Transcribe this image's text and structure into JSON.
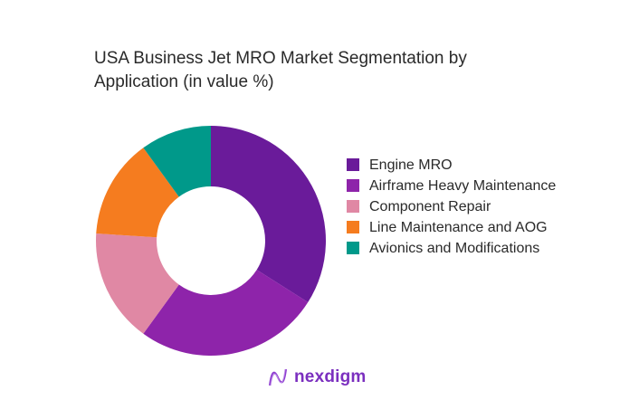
{
  "chart_data": {
    "type": "pie",
    "variant": "donut",
    "title": "USA Business Jet MRO Market Segmentation by Application (in value %)",
    "unit": "%",
    "categories": [
      "Engine MRO",
      "Airframe Heavy Maintenance",
      "Component Repair",
      "Line Maintenance and AOG",
      "Avionics and Modifications"
    ],
    "values": [
      34,
      26,
      16,
      14,
      10
    ],
    "colors": [
      "#6a1b9a",
      "#8e24aa",
      "#e088a4",
      "#f57c1f",
      "#00998a"
    ],
    "legend_position": "right"
  },
  "brand": {
    "name": "nexdigm",
    "color": "#7b2fbf"
  }
}
